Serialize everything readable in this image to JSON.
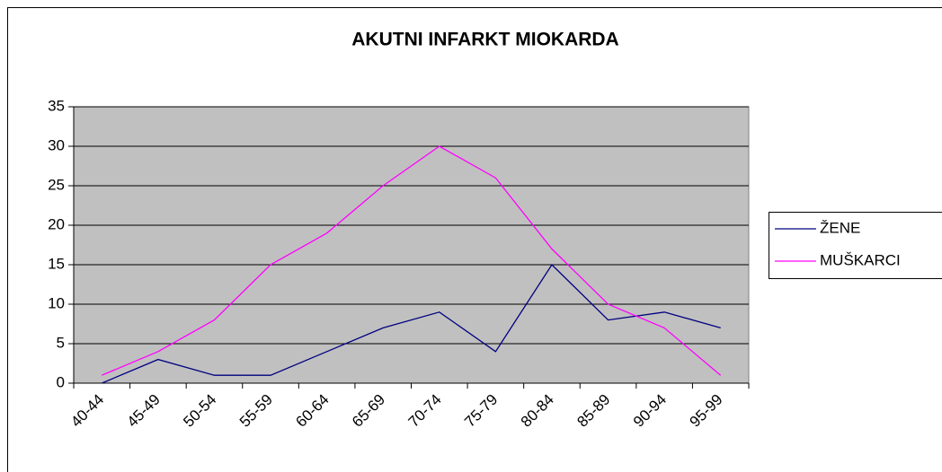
{
  "chart_data": {
    "type": "line",
    "title": "AKUTNI INFARKT MIOKARDA",
    "categories": [
      "40-44",
      "45-49",
      "50-54",
      "55-59",
      "60-64",
      "65-69",
      "70-74",
      "75-79",
      "80-84",
      "85-89",
      "90-94",
      "95-99"
    ],
    "series": [
      {
        "name": "ŽENE",
        "color": "#000080",
        "values": [
          0,
          3,
          1,
          1,
          4,
          7,
          9,
          4,
          15,
          8,
          9,
          7
        ]
      },
      {
        "name": "MUŠKARCI",
        "color": "#ff00ff",
        "values": [
          1,
          4,
          8,
          15,
          19,
          25,
          30,
          26,
          17,
          10,
          7,
          1
        ]
      }
    ],
    "ylim": [
      0,
      35
    ],
    "yticks": [
      0,
      5,
      10,
      15,
      20,
      25,
      30,
      35
    ],
    "grid": true,
    "legend": "right"
  }
}
